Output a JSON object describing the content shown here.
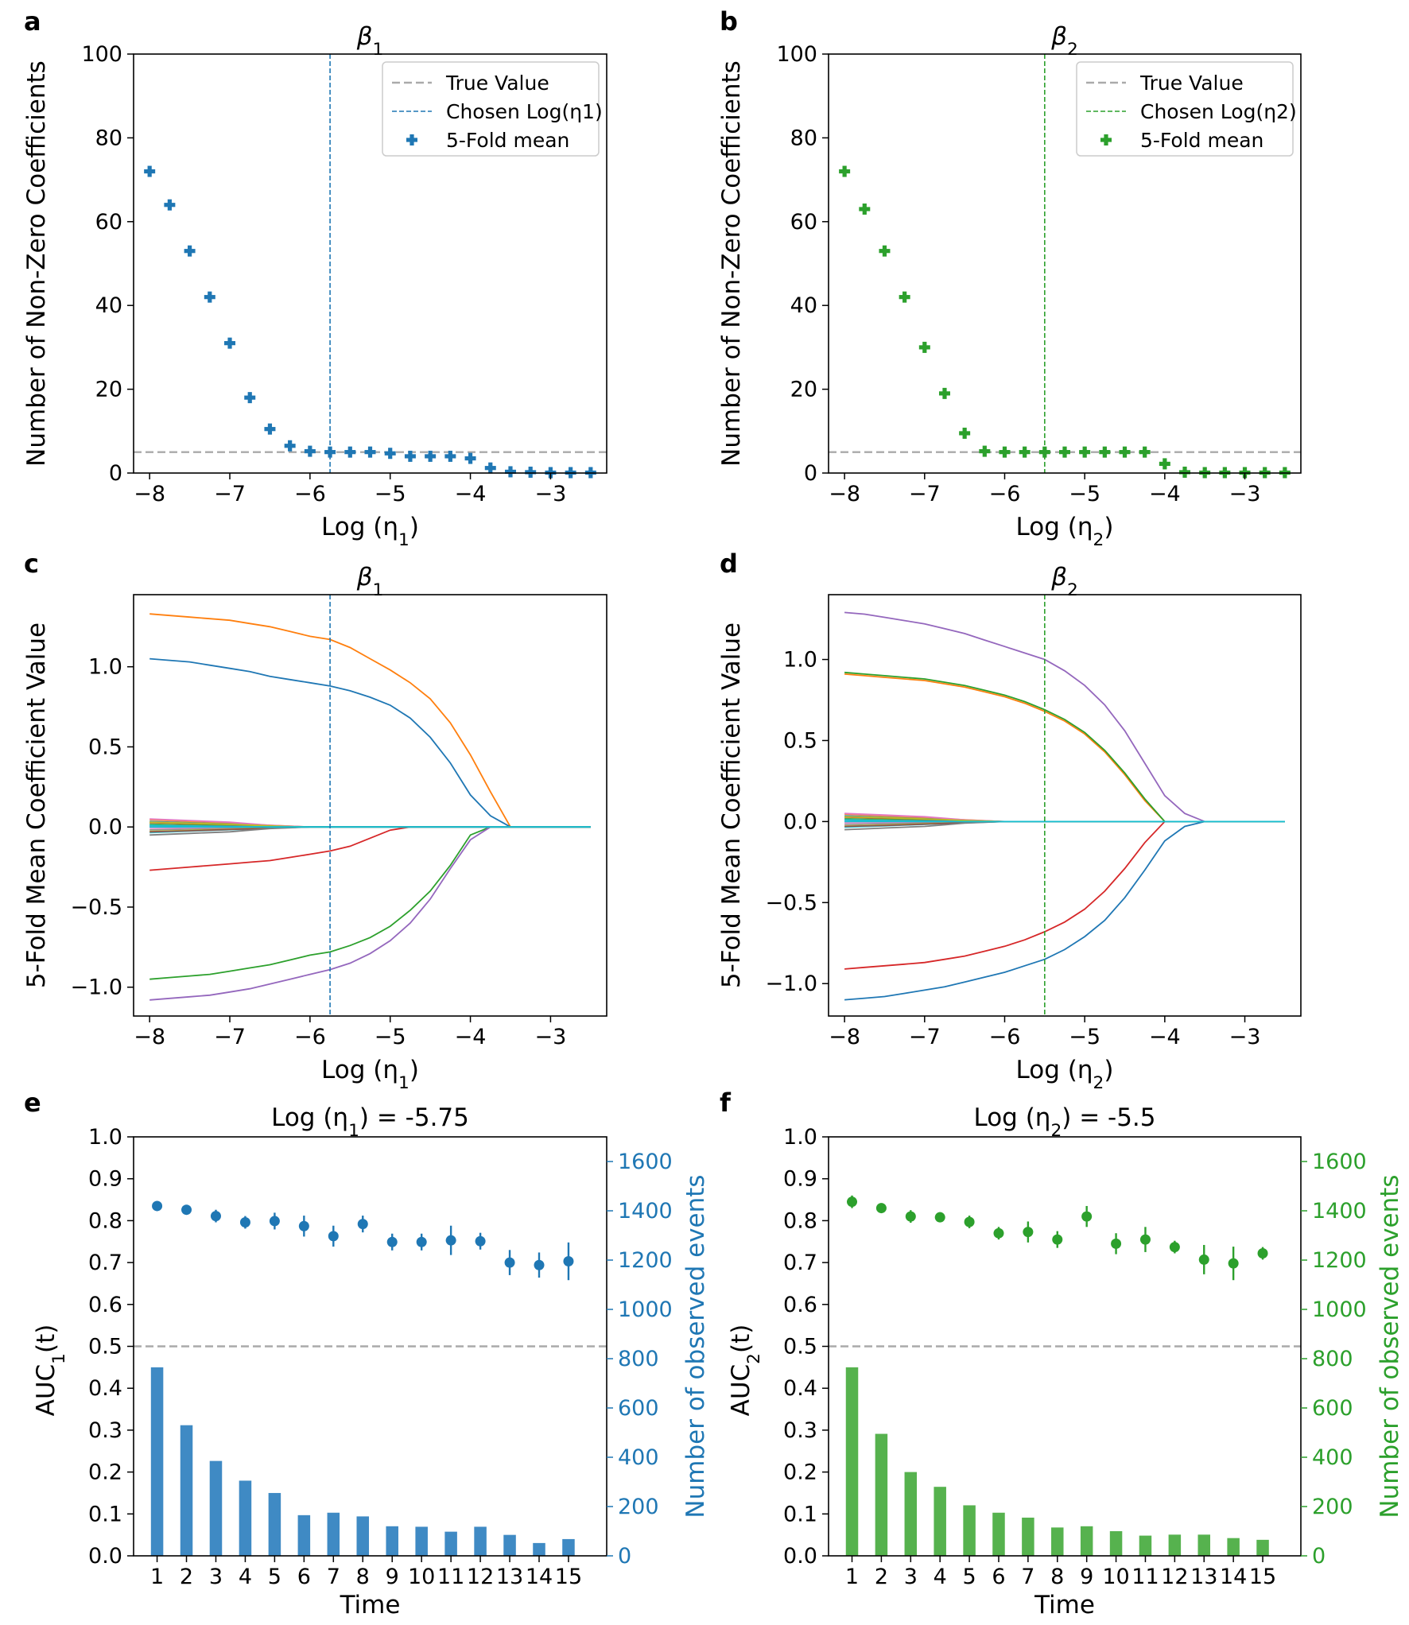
{
  "colors": {
    "blue": "#1f77b4",
    "green": "#2ca02c",
    "grey_dashed": "#aaaaaa",
    "bar_blue": "#3f8ac4",
    "bar_green": "#56b24e",
    "paths": [
      "#ff7f0e",
      "#1f77b4",
      "#d62728",
      "#2ca02c",
      "#9467bd",
      "#8c564b",
      "#e377c2",
      "#7f7f7f",
      "#bcbd22",
      "#17becf"
    ]
  },
  "chart_data": [
    {
      "id": "a",
      "type": "scatter",
      "letter": "a",
      "title": "β",
      "title_sub": "1",
      "xlabel": "Log (η",
      "xlabel_sub": "1",
      "xlabel_end": ")",
      "ylabel": "Number of Non-Zero Coefficients",
      "xlim": [
        -8.2,
        -2.3
      ],
      "ylim": [
        0,
        100
      ],
      "xticks": [
        -8,
        -7,
        -6,
        -5,
        -4,
        -3
      ],
      "xtick_labels": [
        "−8",
        "−7",
        "−6",
        "−5",
        "−4",
        "−3"
      ],
      "yticks": [
        0,
        20,
        40,
        60,
        80,
        100
      ],
      "ytick_labels": [
        "0",
        "20",
        "40",
        "60",
        "80",
        "100"
      ],
      "true_value": 5,
      "chosen": -5.75,
      "color_key": "blue",
      "legend": [
        "True Value",
        "Chosen Log(η1)",
        "5-Fold mean"
      ],
      "x": [
        -8,
        -7.75,
        -7.5,
        -7.25,
        -7,
        -6.75,
        -6.5,
        -6.25,
        -6,
        -5.75,
        -5.5,
        -5.25,
        -5,
        -4.75,
        -4.5,
        -4.25,
        -4,
        -3.75,
        -3.5,
        -3.25,
        -3,
        -2.75,
        -2.5
      ],
      "y": [
        72,
        64,
        53,
        42,
        31,
        18,
        10.5,
        6.5,
        5.2,
        5,
        5,
        5,
        4.7,
        4,
        4,
        4,
        3.5,
        1.2,
        0.3,
        0.2,
        0.1,
        0.1,
        0.1
      ]
    },
    {
      "id": "b",
      "type": "scatter",
      "letter": "b",
      "title": "β",
      "title_sub": "2",
      "xlabel": "Log (η",
      "xlabel_sub": "2",
      "xlabel_end": ")",
      "ylabel": "Number of Non-Zero Coefficients",
      "xlim": [
        -8.2,
        -2.3
      ],
      "ylim": [
        0,
        100
      ],
      "xticks": [
        -8,
        -7,
        -6,
        -5,
        -4,
        -3
      ],
      "xtick_labels": [
        "−8",
        "−7",
        "−6",
        "−5",
        "−4",
        "−3"
      ],
      "yticks": [
        0,
        20,
        40,
        60,
        80,
        100
      ],
      "ytick_labels": [
        "0",
        "20",
        "40",
        "60",
        "80",
        "100"
      ],
      "true_value": 5,
      "chosen": -5.5,
      "color_key": "green",
      "legend": [
        "True Value",
        "Chosen Log(η2)",
        "5-Fold mean"
      ],
      "x": [
        -8,
        -7.75,
        -7.5,
        -7.25,
        -7,
        -6.75,
        -6.5,
        -6.25,
        -6,
        -5.75,
        -5.5,
        -5.25,
        -5,
        -4.75,
        -4.5,
        -4.25,
        -4,
        -3.75,
        -3.5,
        -3.25,
        -3,
        -2.75,
        -2.5
      ],
      "y": [
        72,
        63,
        53,
        42,
        30,
        19,
        9.5,
        5.2,
        5,
        5,
        5,
        5,
        5,
        5,
        5,
        5,
        2.2,
        0.2,
        0.1,
        0.1,
        0.1,
        0.1,
        0.1
      ]
    },
    {
      "id": "c",
      "type": "line",
      "letter": "c",
      "title": "β",
      "title_sub": "1",
      "xlabel": "Log (η",
      "xlabel_sub": "1",
      "xlabel_end": ")",
      "ylabel": "5-Fold Mean Coefficient Value",
      "xlim": [
        -8.2,
        -2.3
      ],
      "ylim": [
        -1.18,
        1.45
      ],
      "xticks": [
        -8,
        -7,
        -6,
        -5,
        -4,
        -3
      ],
      "xtick_labels": [
        "−8",
        "−7",
        "−6",
        "−5",
        "−4",
        "−3"
      ],
      "yticks": [
        -1,
        -0.5,
        0,
        0.5,
        1
      ],
      "ytick_labels": [
        "−1.0",
        "−0.5",
        "0.0",
        "0.5",
        "1.0"
      ],
      "chosen": -5.75,
      "color_key": "blue",
      "x": [
        -8,
        -7.75,
        -7.5,
        -7.25,
        -7,
        -6.75,
        -6.5,
        -6.25,
        -6,
        -5.75,
        -5.5,
        -5.25,
        -5,
        -4.75,
        -4.5,
        -4.25,
        -4,
        -3.75,
        -3.5,
        -3.25,
        -3,
        -2.75,
        -2.5
      ],
      "series": [
        {
          "name": "orange",
          "values": [
            1.33,
            1.32,
            1.31,
            1.3,
            1.29,
            1.27,
            1.25,
            1.22,
            1.19,
            1.17,
            1.12,
            1.05,
            0.98,
            0.9,
            0.8,
            0.65,
            0.45,
            0.22,
            0,
            0,
            0,
            0,
            0
          ]
        },
        {
          "name": "blue",
          "values": [
            1.05,
            1.04,
            1.03,
            1.01,
            0.99,
            0.97,
            0.94,
            0.92,
            0.9,
            0.88,
            0.85,
            0.81,
            0.76,
            0.68,
            0.56,
            0.4,
            0.2,
            0.07,
            0,
            0,
            0,
            0,
            0
          ]
        },
        {
          "name": "red",
          "values": [
            -0.27,
            -0.26,
            -0.25,
            -0.24,
            -0.23,
            -0.22,
            -0.21,
            -0.19,
            -0.17,
            -0.15,
            -0.12,
            -0.07,
            -0.02,
            0,
            0,
            0,
            0,
            0,
            0,
            0,
            0,
            0,
            0
          ]
        },
        {
          "name": "green",
          "values": [
            -0.95,
            -0.94,
            -0.93,
            -0.92,
            -0.9,
            -0.88,
            -0.86,
            -0.83,
            -0.8,
            -0.78,
            -0.74,
            -0.69,
            -0.62,
            -0.52,
            -0.4,
            -0.24,
            -0.05,
            0,
            0,
            0,
            0,
            0,
            0
          ]
        },
        {
          "name": "purple",
          "values": [
            -1.08,
            -1.07,
            -1.06,
            -1.05,
            -1.03,
            -1.01,
            -0.98,
            -0.95,
            -0.92,
            -0.89,
            -0.85,
            -0.79,
            -0.71,
            -0.6,
            -0.45,
            -0.26,
            -0.08,
            0,
            0,
            0,
            0,
            0,
            0
          ]
        },
        {
          "name": "noise1",
          "values": [
            0.05,
            0.045,
            0.04,
            0.035,
            0.03,
            0.02,
            0.01,
            0.005,
            0,
            0,
            0,
            0,
            0,
            0,
            0,
            0,
            0,
            0,
            0,
            0,
            0,
            0,
            0
          ]
        },
        {
          "name": "noise2",
          "values": [
            0.03,
            0.027,
            0.024,
            0.02,
            0.016,
            0.012,
            0.007,
            0.003,
            0,
            0,
            0,
            0,
            0,
            0,
            0,
            0,
            0,
            0,
            0,
            0,
            0,
            0,
            0
          ]
        },
        {
          "name": "noise3",
          "values": [
            -0.03,
            -0.027,
            -0.024,
            -0.02,
            -0.016,
            -0.012,
            -0.007,
            -0.003,
            0,
            0,
            0,
            0,
            0,
            0,
            0,
            0,
            0,
            0,
            0,
            0,
            0,
            0,
            0
          ]
        },
        {
          "name": "noise4",
          "values": [
            -0.05,
            -0.045,
            -0.04,
            -0.035,
            -0.03,
            -0.02,
            -0.01,
            -0.005,
            0,
            0,
            0,
            0,
            0,
            0,
            0,
            0,
            0,
            0,
            0,
            0,
            0,
            0,
            0
          ]
        },
        {
          "name": "cyan",
          "values": [
            0.01,
            0.008,
            0.006,
            0.004,
            0.002,
            0.001,
            0,
            0,
            0,
            0,
            0,
            0,
            0,
            0,
            0,
            0,
            0,
            0,
            0,
            0,
            0,
            0,
            0
          ]
        }
      ]
    },
    {
      "id": "d",
      "type": "line",
      "letter": "d",
      "title": "β",
      "title_sub": "2",
      "xlabel": "Log (η",
      "xlabel_sub": "2",
      "xlabel_end": ")",
      "ylabel": "5-Fold Mean Coefficient Value",
      "xlim": [
        -8.2,
        -2.3
      ],
      "ylim": [
        -1.2,
        1.4
      ],
      "xticks": [
        -8,
        -7,
        -6,
        -5,
        -4,
        -3
      ],
      "xtick_labels": [
        "−8",
        "−7",
        "−6",
        "−5",
        "−4",
        "−3"
      ],
      "yticks": [
        -1,
        -0.5,
        0,
        0.5,
        1
      ],
      "ytick_labels": [
        "−1.0",
        "−0.5",
        "0.0",
        "0.5",
        "1.0"
      ],
      "chosen": -5.5,
      "color_key": "green",
      "x": [
        -8,
        -7.75,
        -7.5,
        -7.25,
        -7,
        -6.75,
        -6.5,
        -6.25,
        -6,
        -5.75,
        -5.5,
        -5.25,
        -5,
        -4.75,
        -4.5,
        -4.25,
        -4,
        -3.75,
        -3.5,
        -3.25,
        -3,
        -2.75,
        -2.5
      ],
      "series": [
        {
          "name": "purple",
          "values": [
            1.29,
            1.28,
            1.26,
            1.24,
            1.22,
            1.19,
            1.16,
            1.12,
            1.08,
            1.04,
            1.0,
            0.93,
            0.84,
            0.72,
            0.56,
            0.36,
            0.16,
            0.05,
            0,
            0,
            0,
            0,
            0
          ]
        },
        {
          "name": "orange",
          "values": [
            0.91,
            0.9,
            0.89,
            0.88,
            0.87,
            0.85,
            0.83,
            0.8,
            0.77,
            0.73,
            0.68,
            0.62,
            0.54,
            0.43,
            0.29,
            0.13,
            0,
            0,
            0,
            0,
            0,
            0,
            0
          ]
        },
        {
          "name": "green",
          "values": [
            0.92,
            0.91,
            0.9,
            0.89,
            0.88,
            0.86,
            0.84,
            0.81,
            0.78,
            0.74,
            0.69,
            0.63,
            0.55,
            0.44,
            0.3,
            0.14,
            0,
            0,
            0,
            0,
            0,
            0,
            0
          ]
        },
        {
          "name": "red",
          "values": [
            -0.91,
            -0.9,
            -0.89,
            -0.88,
            -0.87,
            -0.85,
            -0.83,
            -0.8,
            -0.77,
            -0.73,
            -0.68,
            -0.62,
            -0.54,
            -0.43,
            -0.29,
            -0.13,
            0,
            0,
            0,
            0,
            0,
            0,
            0
          ]
        },
        {
          "name": "blue",
          "values": [
            -1.1,
            -1.09,
            -1.08,
            -1.06,
            -1.04,
            -1.02,
            -0.99,
            -0.96,
            -0.93,
            -0.89,
            -0.85,
            -0.79,
            -0.71,
            -0.61,
            -0.47,
            -0.3,
            -0.12,
            -0.03,
            0,
            0,
            0,
            0,
            0
          ]
        },
        {
          "name": "noise1",
          "values": [
            0.05,
            0.045,
            0.04,
            0.035,
            0.03,
            0.02,
            0.01,
            0.005,
            0,
            0,
            0,
            0,
            0,
            0,
            0,
            0,
            0,
            0,
            0,
            0,
            0,
            0,
            0
          ]
        },
        {
          "name": "noise2",
          "values": [
            0.03,
            0.027,
            0.024,
            0.02,
            0.016,
            0.012,
            0.007,
            0.003,
            0,
            0,
            0,
            0,
            0,
            0,
            0,
            0,
            0,
            0,
            0,
            0,
            0,
            0,
            0
          ]
        },
        {
          "name": "noise3",
          "values": [
            -0.03,
            -0.027,
            -0.024,
            -0.02,
            -0.016,
            -0.012,
            -0.007,
            -0.003,
            0,
            0,
            0,
            0,
            0,
            0,
            0,
            0,
            0,
            0,
            0,
            0,
            0,
            0,
            0
          ]
        },
        {
          "name": "noise4",
          "values": [
            -0.05,
            -0.045,
            -0.04,
            -0.035,
            -0.03,
            -0.02,
            -0.01,
            -0.005,
            0,
            0,
            0,
            0,
            0,
            0,
            0,
            0,
            0,
            0,
            0,
            0,
            0,
            0,
            0
          ]
        },
        {
          "name": "cyan",
          "values": [
            0.01,
            0.008,
            0.006,
            0.004,
            0.002,
            0.001,
            0,
            0,
            0,
            0,
            0,
            0,
            0,
            0,
            0,
            0,
            0,
            0,
            0,
            0,
            0,
            0,
            0
          ]
        }
      ]
    },
    {
      "id": "e",
      "type": "bar+errorbar",
      "letter": "e",
      "title": "Log (η",
      "title_sub": "1",
      "title_end": ") = -5.75",
      "xlabel": "Time",
      "ylabel": "AUC",
      "ylabel_sub": "1",
      "ylabel_end": "(t)",
      "y2label": "Number of observed events",
      "xlim": [
        0.2,
        16.3
      ],
      "ylim": [
        0,
        1
      ],
      "y2lim": [
        0,
        1700
      ],
      "categories": [
        "1",
        "2",
        "3",
        "4",
        "5",
        "6",
        "7",
        "8",
        "9",
        "10",
        "11",
        "12",
        "13",
        "14",
        "15"
      ],
      "yticks": [
        0,
        0.1,
        0.2,
        0.3,
        0.4,
        0.5,
        0.6,
        0.7,
        0.8,
        0.9,
        1.0
      ],
      "ytick_labels": [
        "0.0",
        "0.1",
        "0.2",
        "0.3",
        "0.4",
        "0.5",
        "0.6",
        "0.7",
        "0.8",
        "0.9",
        "1.0"
      ],
      "y2ticks": [
        0,
        200,
        400,
        600,
        800,
        1000,
        1200,
        1400,
        1600
      ],
      "y2tick_labels": [
        "0",
        "200",
        "400",
        "600",
        "800",
        "1000",
        "1200",
        "1400",
        "1600"
      ],
      "reference": 0.5,
      "color_key": "blue",
      "bar_color_key": "bar_blue",
      "auc": [
        0.835,
        0.826,
        0.811,
        0.796,
        0.799,
        0.787,
        0.763,
        0.792,
        0.749,
        0.749,
        0.753,
        0.751,
        0.7,
        0.694,
        0.703
      ],
      "auc_err": [
        0.008,
        0.01,
        0.015,
        0.015,
        0.02,
        0.025,
        0.025,
        0.02,
        0.02,
        0.02,
        0.035,
        0.02,
        0.03,
        0.03,
        0.045
      ],
      "events": [
        765,
        530,
        385,
        305,
        255,
        165,
        175,
        160,
        120,
        118,
        98,
        118,
        85,
        52,
        68
      ]
    },
    {
      "id": "f",
      "type": "bar+errorbar",
      "letter": "f",
      "title": "Log (η",
      "title_sub": "2",
      "title_end": ") = -5.5",
      "xlabel": "Time",
      "ylabel": "AUC",
      "ylabel_sub": "2",
      "ylabel_end": "(t)",
      "y2label": "Number of observed events",
      "xlim": [
        0.2,
        16.3
      ],
      "ylim": [
        0,
        1
      ],
      "y2lim": [
        0,
        1700
      ],
      "categories": [
        "1",
        "2",
        "3",
        "4",
        "5",
        "6",
        "7",
        "8",
        "9",
        "10",
        "11",
        "12",
        "13",
        "14",
        "15"
      ],
      "yticks": [
        0,
        0.1,
        0.2,
        0.3,
        0.4,
        0.5,
        0.6,
        0.7,
        0.8,
        0.9,
        1.0
      ],
      "ytick_labels": [
        "0.0",
        "0.1",
        "0.2",
        "0.3",
        "0.4",
        "0.5",
        "0.6",
        "0.7",
        "0.8",
        "0.9",
        "1.0"
      ],
      "y2ticks": [
        0,
        200,
        400,
        600,
        800,
        1000,
        1200,
        1400,
        1600
      ],
      "y2tick_labels": [
        "0",
        "200",
        "400",
        "600",
        "800",
        "1000",
        "1200",
        "1400",
        "1600"
      ],
      "reference": 0.5,
      "color_key": "green",
      "bar_color_key": "bar_green",
      "auc": [
        0.845,
        0.83,
        0.81,
        0.808,
        0.797,
        0.77,
        0.773,
        0.755,
        0.81,
        0.745,
        0.755,
        0.737,
        0.707,
        0.698,
        0.722
      ],
      "auc_err": [
        0.015,
        0.008,
        0.015,
        0.012,
        0.015,
        0.015,
        0.025,
        0.02,
        0.025,
        0.025,
        0.03,
        0.015,
        0.035,
        0.04,
        0.015
      ],
      "events": [
        765,
        495,
        340,
        280,
        205,
        175,
        155,
        115,
        120,
        100,
        82,
        86,
        86,
        72,
        65
      ]
    }
  ]
}
